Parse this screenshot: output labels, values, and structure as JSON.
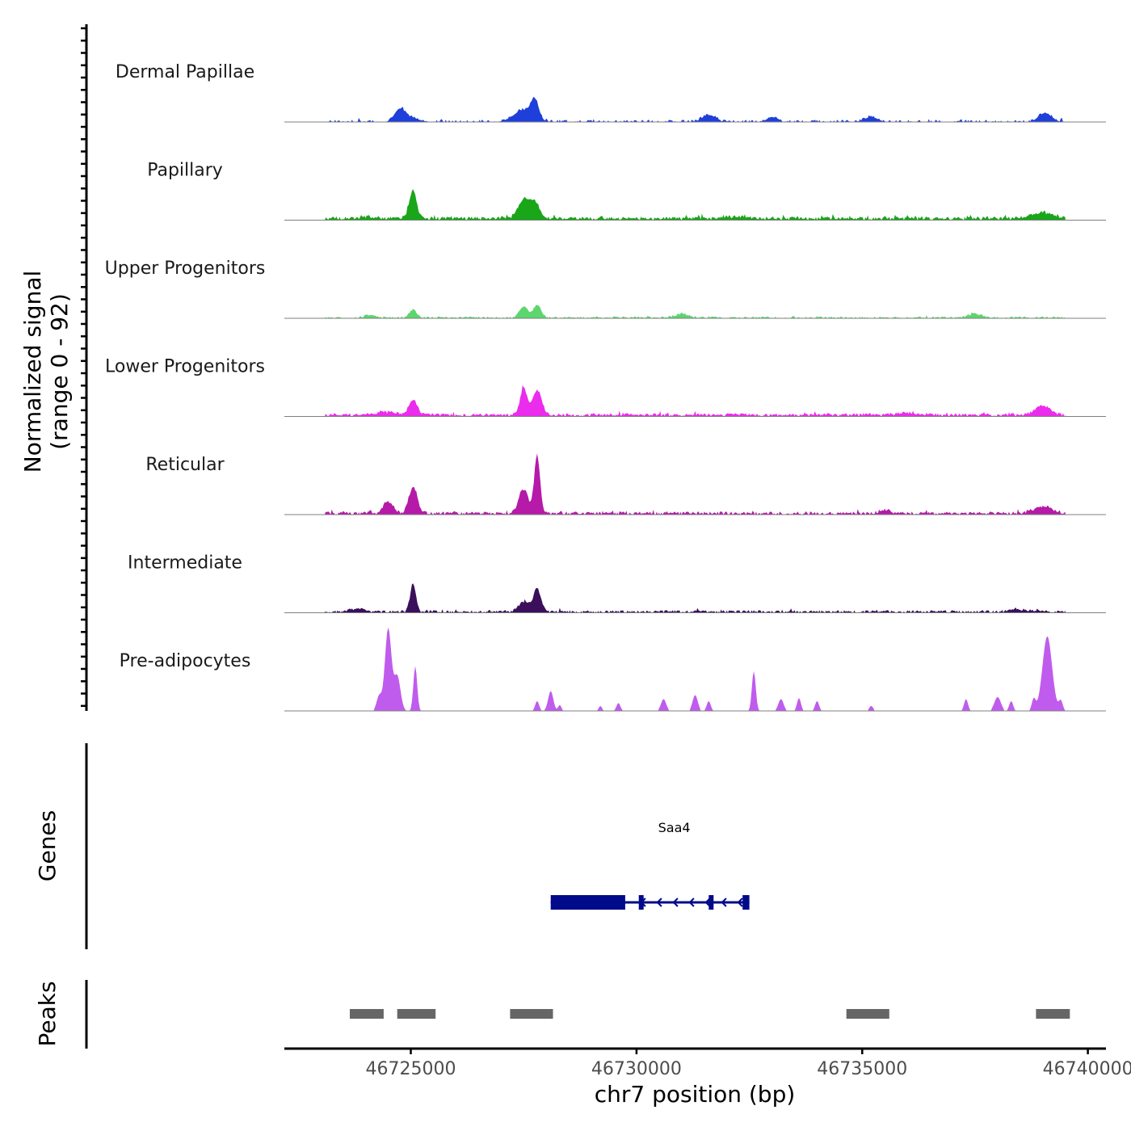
{
  "chart_data": {
    "type": "area",
    "title": "",
    "ylabel": "Normalized signal",
    "ylabel_range": "(range 0 - 92)",
    "ylim": [
      0,
      92
    ],
    "xlabel": "chr7 position (bp)",
    "xlim": [
      46722200,
      46740400
    ],
    "x_ticks": [
      {
        "value": 46725000,
        "label": "46725000"
      },
      {
        "value": 46730000,
        "label": "46730000"
      },
      {
        "value": 46735000,
        "label": "46735000"
      },
      {
        "value": 46740000,
        "label": "46740000"
      }
    ],
    "signal_start": 46723100,
    "signal_end": 46739500,
    "series": [
      {
        "name": "Dermal Papillae",
        "color": "#1f3fdb",
        "noise": 0.9,
        "sparsity": 0.55,
        "peaks": [
          [
            46724750,
            12,
            160
          ],
          [
            46725000,
            4,
            250
          ],
          [
            46727500,
            12,
            300
          ],
          [
            46727750,
            18,
            120
          ],
          [
            46731600,
            7,
            200
          ],
          [
            46733000,
            5,
            150
          ],
          [
            46735200,
            5,
            200
          ],
          [
            46739050,
            9,
            200
          ]
        ]
      },
      {
        "name": "Papillary",
        "color": "#19a619",
        "noise": 1.4,
        "sparsity": 0.05,
        "peaks": [
          [
            46725050,
            28,
            110
          ],
          [
            46727500,
            18,
            180
          ],
          [
            46727750,
            15,
            150
          ],
          [
            46739000,
            6,
            300
          ],
          [
            46724000,
            2,
            200
          ],
          [
            46732200,
            2,
            300
          ]
        ]
      },
      {
        "name": "Upper Progenitors",
        "color": "#5cd66e",
        "noise": 0.7,
        "sparsity": 0.25,
        "peaks": [
          [
            46725050,
            8,
            110
          ],
          [
            46727500,
            11,
            130
          ],
          [
            46727800,
            13,
            120
          ],
          [
            46731000,
            4,
            200
          ],
          [
            46737500,
            4,
            200
          ],
          [
            46724100,
            3,
            150
          ]
        ]
      },
      {
        "name": "Lower Progenitors",
        "color": "#ec2cec",
        "noise": 1.2,
        "sparsity": 0.05,
        "peaks": [
          [
            46725050,
            15,
            130
          ],
          [
            46727500,
            27,
            110
          ],
          [
            46727800,
            25,
            140
          ],
          [
            46739000,
            9,
            250
          ],
          [
            46724500,
            3,
            300
          ],
          [
            46736000,
            2,
            400
          ]
        ]
      },
      {
        "name": "Reticular",
        "color": "#b51aa8",
        "noise": 1.2,
        "sparsity": 0.2,
        "peaks": [
          [
            46724500,
            12,
            160
          ],
          [
            46725050,
            26,
            130
          ],
          [
            46727500,
            24,
            150
          ],
          [
            46727800,
            58,
            90
          ],
          [
            46739000,
            7,
            300
          ],
          [
            46735500,
            3,
            200
          ]
        ]
      },
      {
        "name": "Intermediate",
        "color": "#3b0f5c",
        "noise": 1.0,
        "sparsity": 0.2,
        "peaks": [
          [
            46725050,
            28,
            90
          ],
          [
            46727500,
            10,
            160
          ],
          [
            46727800,
            23,
            120
          ],
          [
            46723800,
            3,
            200
          ],
          [
            46738500,
            2,
            300
          ]
        ]
      },
      {
        "name": "Pre-adipocytes",
        "color": "#c05ced",
        "noise": 0.0,
        "sparsity": 0.0,
        "peaks": [
          [
            46724500,
            83,
            100
          ],
          [
            46724700,
            35,
            100
          ],
          [
            46724300,
            15,
            80
          ],
          [
            46725100,
            45,
            60
          ],
          [
            46727800,
            10,
            60
          ],
          [
            46728100,
            20,
            80
          ],
          [
            46728300,
            6,
            50
          ],
          [
            46729200,
            5,
            50
          ],
          [
            46729600,
            8,
            60
          ],
          [
            46730600,
            12,
            80
          ],
          [
            46731300,
            16,
            80
          ],
          [
            46731600,
            10,
            60
          ],
          [
            46732600,
            40,
            60
          ],
          [
            46733200,
            12,
            80
          ],
          [
            46733600,
            13,
            60
          ],
          [
            46734000,
            10,
            60
          ],
          [
            46735200,
            5,
            60
          ],
          [
            46737300,
            12,
            60
          ],
          [
            46738000,
            14,
            100
          ],
          [
            46738300,
            10,
            60
          ],
          [
            46738800,
            12,
            60
          ],
          [
            46739100,
            75,
            150
          ],
          [
            46739400,
            10,
            60
          ]
        ]
      }
    ],
    "genes": [
      {
        "name": "Saa4",
        "strand": "-",
        "start": 46728100,
        "end": 46732500,
        "exons": [
          [
            46728100,
            46729750
          ],
          [
            46730050,
            46730150
          ],
          [
            46731600,
            46731680
          ],
          [
            46732350,
            46732500
          ]
        ]
      }
    ],
    "peaks_track": {
      "label": "Peaks",
      "regions": [
        [
          46723650,
          46724400
        ],
        [
          46724700,
          46725550
        ],
        [
          46727200,
          46728150
        ],
        [
          46734650,
          46735600
        ],
        [
          46738850,
          46739600
        ]
      ]
    },
    "genes_track_label": "Genes"
  }
}
